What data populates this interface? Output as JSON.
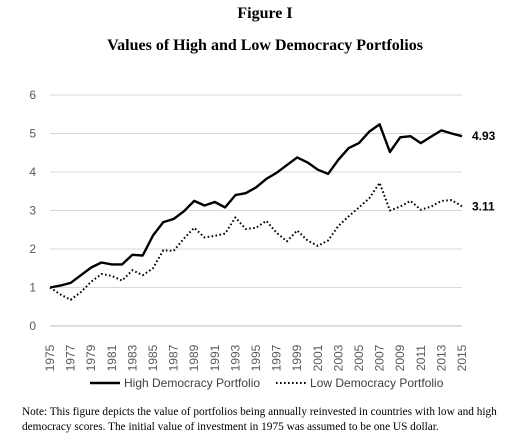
{
  "figure_number": "Figure I",
  "title": "Values of High and Low Democracy Portfolios",
  "note": "Note: This figure depicts the value of portfolios being annually reinvested in countries with low and high democracy scores. The initial value of investment in 1975 was assumed to be one US dollar.",
  "chart_data": {
    "type": "line",
    "title": "Values of High and Low Democracy Portfolios",
    "xlabel": "",
    "ylabel": "",
    "ylim": [
      0,
      6
    ],
    "yticks": [
      0,
      1,
      2,
      3,
      4,
      5,
      6
    ],
    "xticks": [
      1975,
      1977,
      1979,
      1981,
      1983,
      1985,
      1987,
      1989,
      1991,
      1993,
      1995,
      1997,
      1999,
      2001,
      2003,
      2005,
      2007,
      2009,
      2011,
      2013,
      2015
    ],
    "grid": "horizontal",
    "legend_position": "bottom",
    "x": [
      1975,
      1976,
      1977,
      1978,
      1979,
      1980,
      1981,
      1982,
      1983,
      1984,
      1985,
      1986,
      1987,
      1988,
      1989,
      1990,
      1991,
      1992,
      1993,
      1994,
      1995,
      1996,
      1997,
      1998,
      1999,
      2000,
      2001,
      2002,
      2003,
      2004,
      2005,
      2006,
      2007,
      2008,
      2009,
      2010,
      2011,
      2012,
      2013,
      2014,
      2015
    ],
    "series": [
      {
        "name": "High Democracy Portfolio",
        "style": "solid",
        "color": "#000000",
        "end_label": "4.93",
        "values": [
          1.0,
          1.05,
          1.12,
          1.32,
          1.52,
          1.65,
          1.6,
          1.6,
          1.85,
          1.83,
          2.35,
          2.7,
          2.78,
          2.98,
          3.25,
          3.13,
          3.22,
          3.08,
          3.4,
          3.45,
          3.6,
          3.82,
          3.98,
          4.18,
          4.38,
          4.25,
          4.06,
          3.95,
          4.32,
          4.62,
          4.75,
          5.05,
          5.24,
          4.52,
          4.9,
          4.93,
          4.75,
          4.92,
          5.08,
          5.0,
          4.93
        ]
      },
      {
        "name": "Low Democracy Portfolio",
        "style": "dotted",
        "color": "#000000",
        "end_label": "3.11",
        "values": [
          1.0,
          0.82,
          0.68,
          0.88,
          1.15,
          1.35,
          1.3,
          1.18,
          1.45,
          1.32,
          1.5,
          1.97,
          1.95,
          2.27,
          2.55,
          2.3,
          2.34,
          2.4,
          2.82,
          2.52,
          2.55,
          2.73,
          2.42,
          2.2,
          2.48,
          2.22,
          2.08,
          2.22,
          2.6,
          2.85,
          3.08,
          3.32,
          3.72,
          3.0,
          3.1,
          3.25,
          3.02,
          3.1,
          3.25,
          3.27,
          3.11
        ]
      }
    ]
  }
}
